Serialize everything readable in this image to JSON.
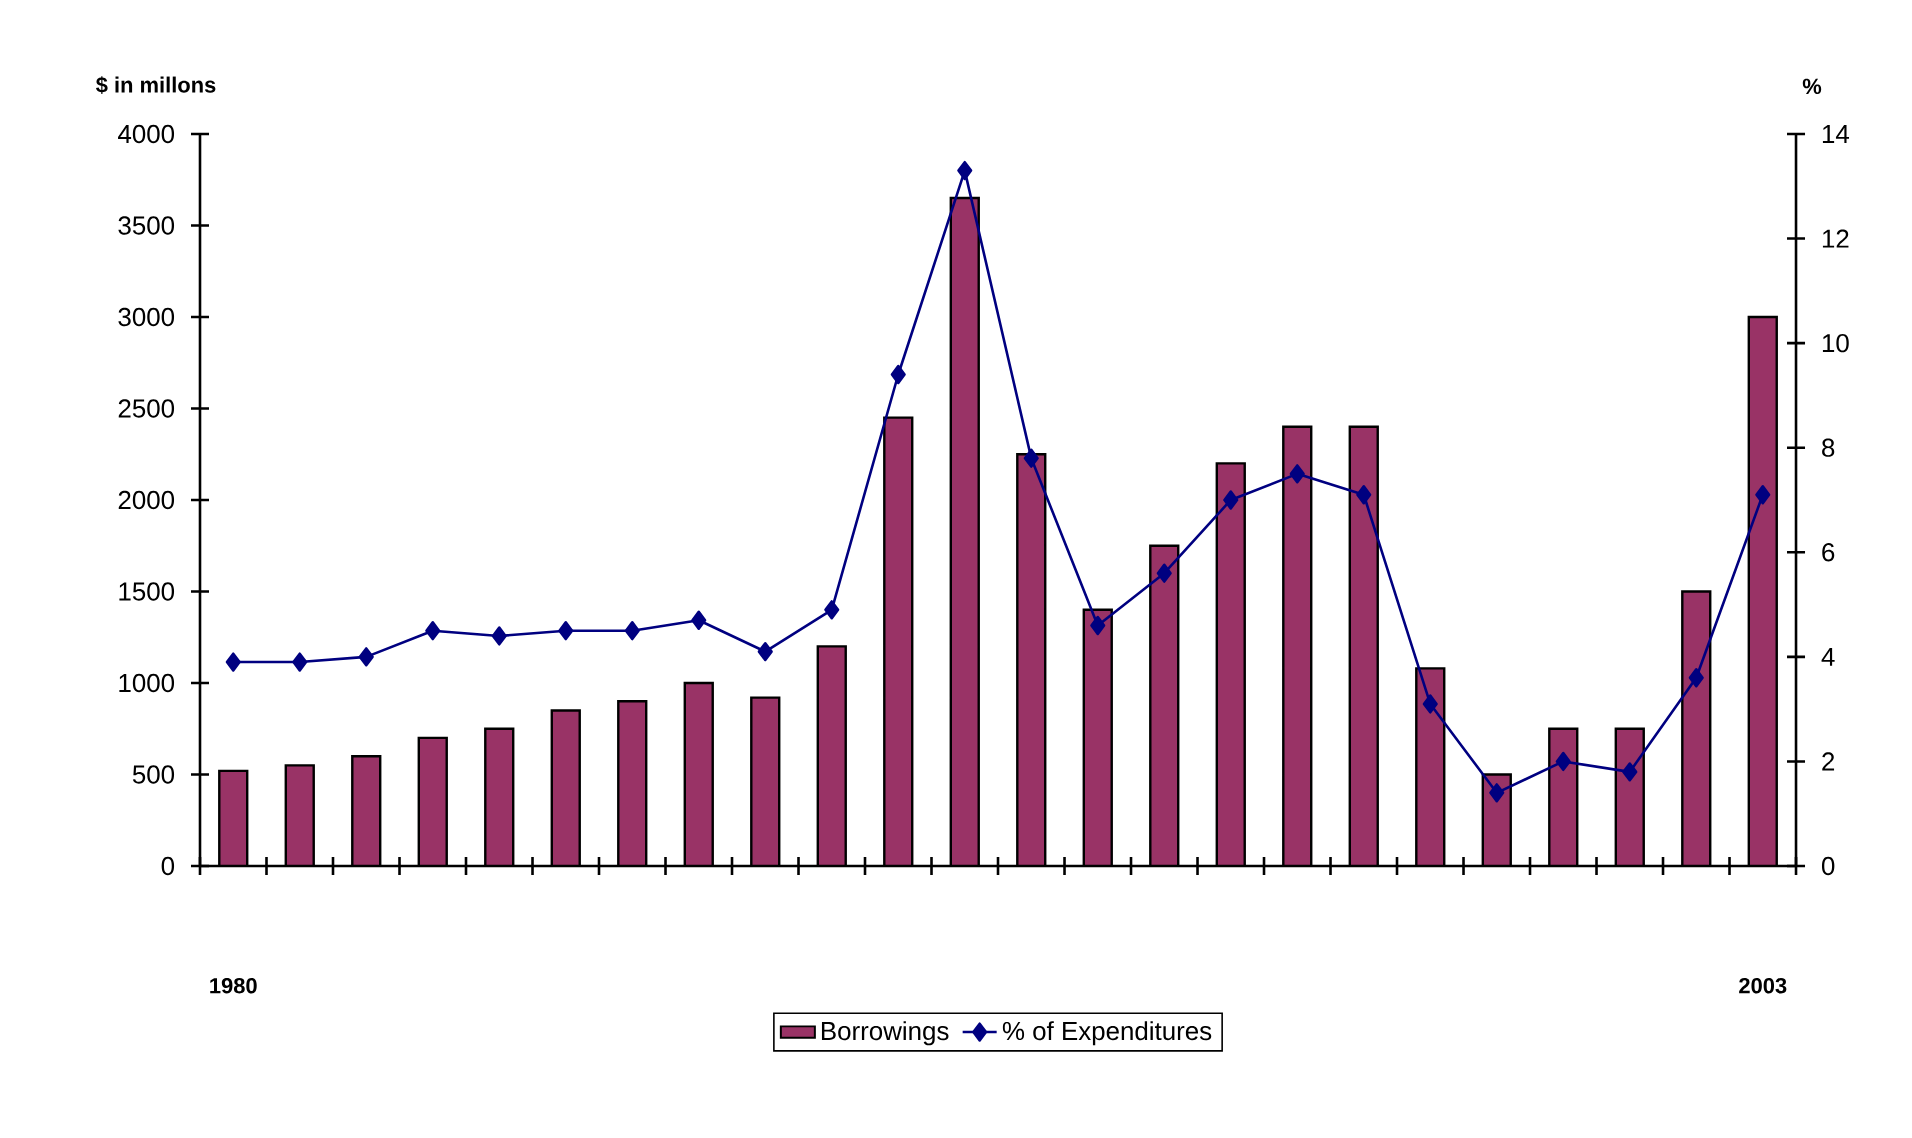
{
  "chart_data": {
    "type": "bar",
    "ylabel": "$ in millons",
    "y2label": "%",
    "categories": [
      "1980",
      null,
      null,
      null,
      null,
      null,
      null,
      null,
      null,
      null,
      null,
      null,
      null,
      null,
      null,
      null,
      null,
      null,
      null,
      null,
      null,
      null,
      null,
      "2003"
    ],
    "series": [
      {
        "name": "Borrowings",
        "color": "#993366",
        "values": [
          520,
          550,
          600,
          700,
          750,
          850,
          900,
          1000,
          920,
          1200,
          2450,
          3650,
          2250,
          1400,
          1750,
          2200,
          2400,
          2400,
          1080,
          500,
          750,
          750,
          1500,
          3000
        ]
      },
      {
        "name": "% of Expenditures",
        "type": "line",
        "axis": "y2",
        "color": "#000080",
        "values": [
          3.9,
          3.9,
          4.0,
          4.5,
          4.4,
          4.5,
          4.5,
          4.7,
          4.1,
          4.9,
          9.4,
          13.3,
          7.8,
          4.6,
          5.6,
          7.0,
          7.5,
          7.1,
          3.1,
          1.4,
          2.0,
          1.8,
          3.6,
          7.1
        ]
      }
    ],
    "ylim": [
      0,
      4000
    ],
    "yticks": [
      0,
      500,
      1000,
      1500,
      2000,
      2500,
      3000,
      3500,
      4000
    ],
    "y2lim": [
      0,
      14
    ],
    "y2ticks": [
      0,
      2,
      4,
      6,
      8,
      10,
      12,
      14
    ],
    "marker": "diamond",
    "line_style": "solid",
    "legend": "bottom",
    "grid": false
  }
}
